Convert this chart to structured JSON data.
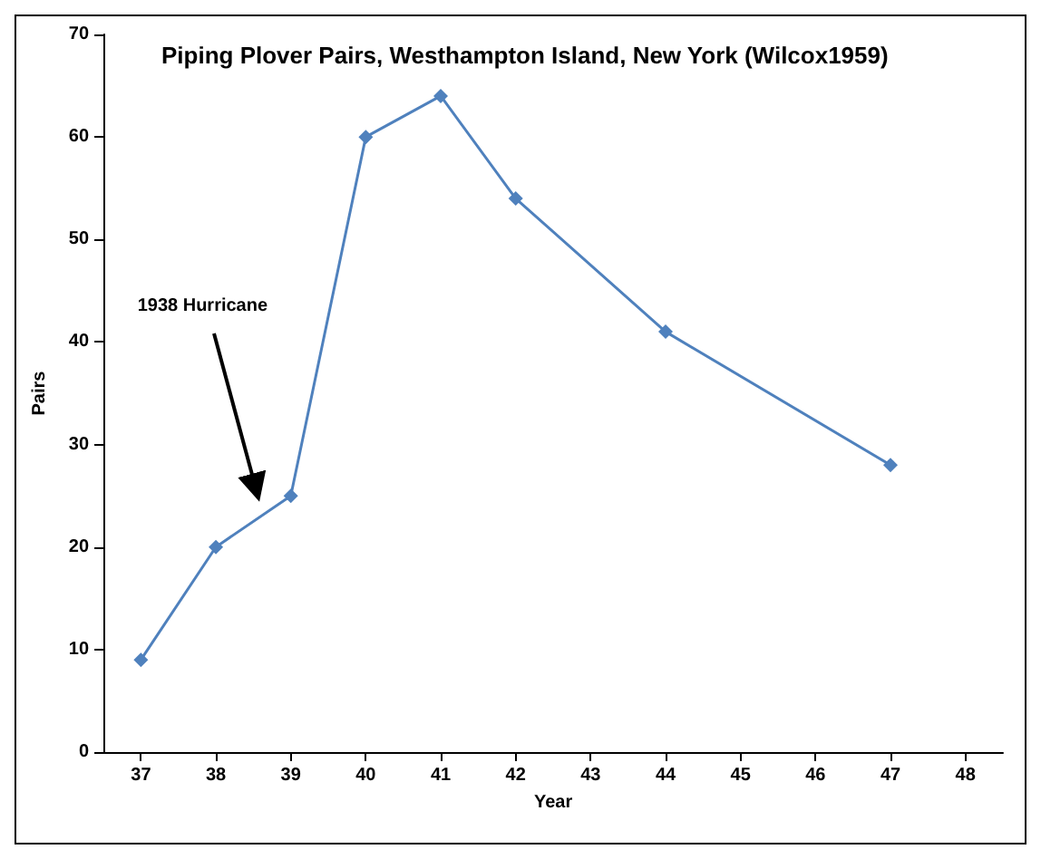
{
  "chart_data": {
    "type": "line",
    "title": "Piping Plover Pairs, Westhampton Island, New York (Wilcox1959)",
    "xlabel": "Year",
    "ylabel": "Pairs",
    "x": [
      37,
      38,
      39,
      40,
      41,
      42,
      44,
      47
    ],
    "series": [
      {
        "color": "#4f81bd",
        "values": [
          9,
          20,
          25,
          60,
          64,
          54,
          41,
          28
        ]
      }
    ],
    "xlim": [
      36.5,
      48.5
    ],
    "xticks": [
      37,
      38,
      39,
      40,
      41,
      42,
      43,
      44,
      45,
      46,
      47,
      48
    ],
    "ylim": [
      0,
      70
    ],
    "yticks": [
      0,
      10,
      20,
      30,
      40,
      50,
      60,
      70
    ],
    "grid": false,
    "marker": "diamond",
    "line_style": "solid",
    "annotations": [
      {
        "text": "1938 Hurricane",
        "x": 38.6,
        "y": 24
      }
    ]
  }
}
